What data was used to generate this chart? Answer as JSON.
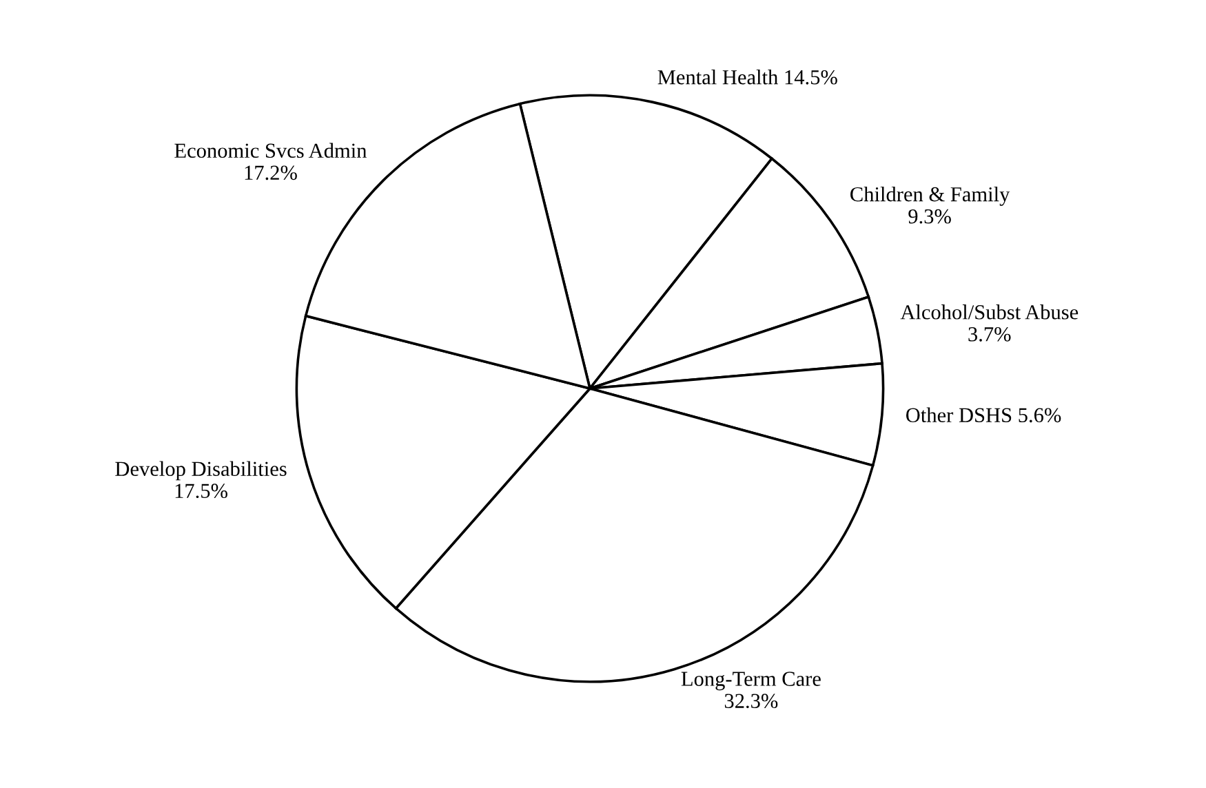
{
  "chart_data": {
    "type": "pie",
    "categories": [
      "Mental Health",
      "Children & Family",
      "Alcohol/Subst Abuse",
      "Other DSHS",
      "Long-Term Care",
      "Develop Disabilities",
      "Economic Svcs Admin"
    ],
    "values": [
      14.5,
      9.3,
      3.7,
      5.6,
      32.3,
      17.5,
      17.2
    ],
    "value_labels": [
      "14.5%",
      "9.3%",
      "3.7%",
      "5.6%",
      "32.3%",
      "17.5%",
      "17.2%"
    ],
    "colors": [
      "#ffffff",
      "#ffffff",
      "#ffffff",
      "#ffffff",
      "#ffffff",
      "#ffffff",
      "#ffffff"
    ],
    "legend": false
  }
}
